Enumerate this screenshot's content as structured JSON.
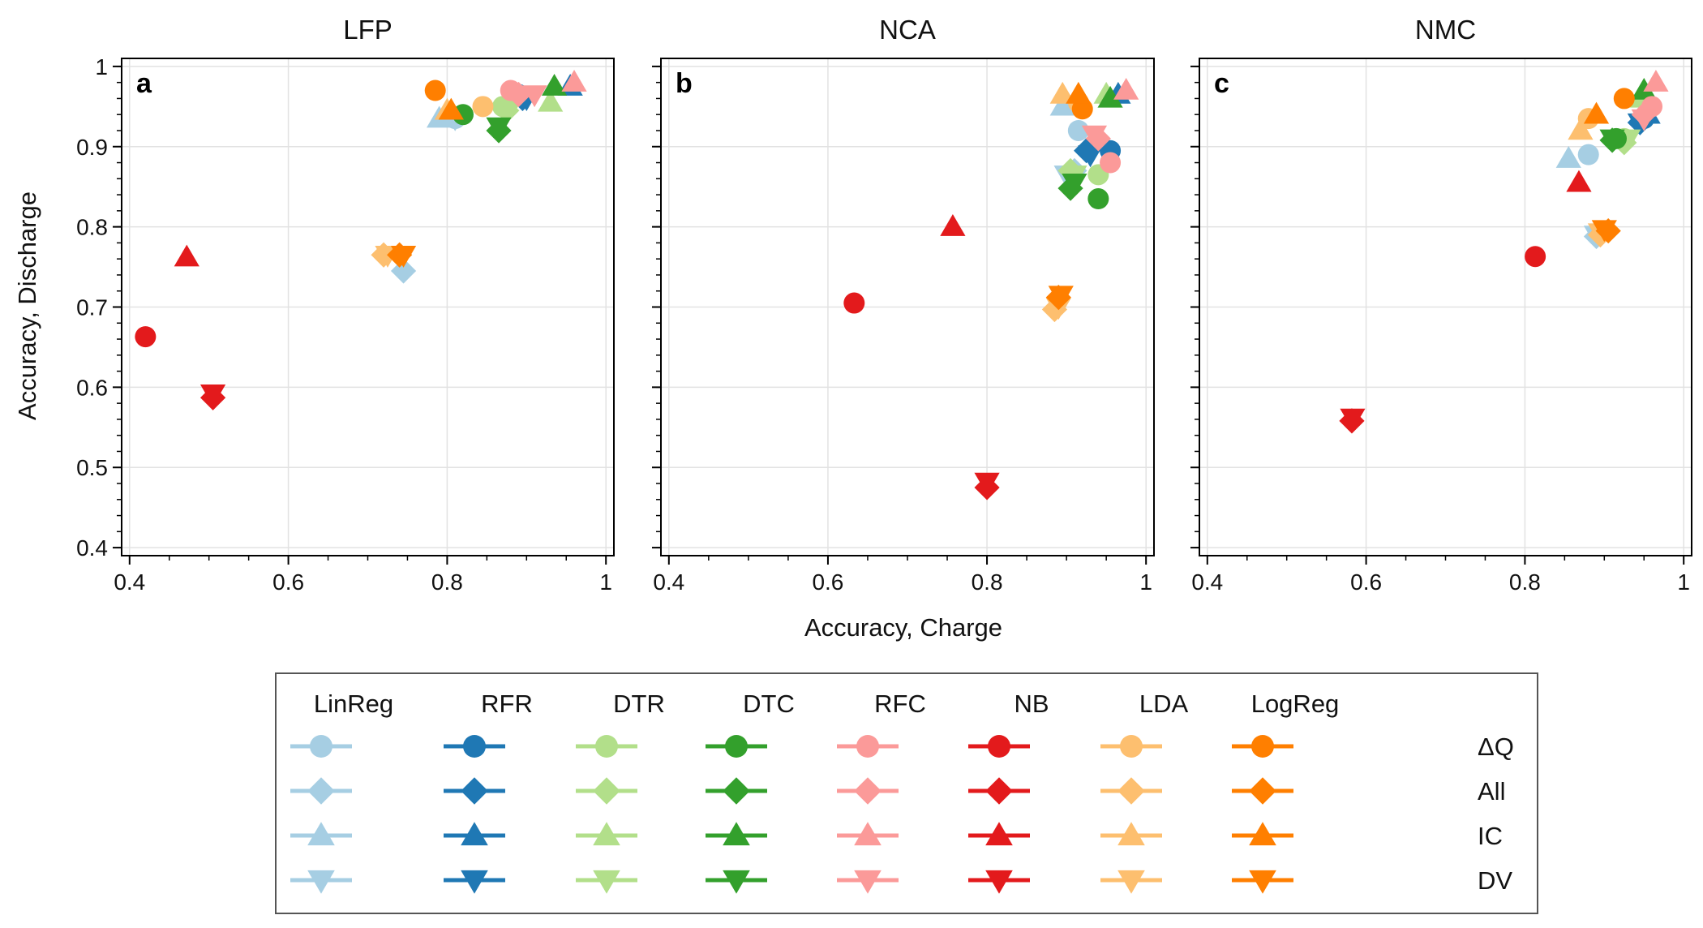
{
  "chart_data": {
    "type": "scatter",
    "xlabel": "Accuracy, Charge",
    "ylabel": "Accuracy, Discharge",
    "xlim": [
      0.39,
      1.01
    ],
    "ylim": [
      0.39,
      1.01
    ],
    "xticks": [
      "0.4",
      "0.6",
      "0.8",
      "1"
    ],
    "yticks": [
      "0.4",
      "0.5",
      "0.6",
      "0.7",
      "0.8",
      "0.9",
      "1"
    ],
    "grid": true,
    "legend_position": "bottom",
    "models": [
      {
        "name": "LinReg",
        "color": "#a6cee3"
      },
      {
        "name": "RFR",
        "color": "#1f78b4"
      },
      {
        "name": "DTR",
        "color": "#b2df8a"
      },
      {
        "name": "DTC",
        "color": "#33a02c"
      },
      {
        "name": "RFC",
        "color": "#fb9a99"
      },
      {
        "name": "NB",
        "color": "#e31a1c"
      },
      {
        "name": "LDA",
        "color": "#fdbf6f"
      },
      {
        "name": "LogReg",
        "color": "#ff7f00"
      }
    ],
    "features": [
      {
        "name": "ΔQ",
        "marker": "circle"
      },
      {
        "name": "All",
        "marker": "diamond"
      },
      {
        "name": "IC",
        "marker": "triangle-up"
      },
      {
        "name": "DV",
        "marker": "triangle-down"
      }
    ],
    "panels": [
      {
        "title": "LFP",
        "letter": "a",
        "points": {
          "LinReg": {
            "ΔQ": [
              0.81,
              0.935
            ],
            "All": [
              0.745,
              0.745
            ],
            "IC": [
              0.79,
              0.935
            ],
            "DV": [
              0.81,
              0.935
            ]
          },
          "RFR": {
            "ΔQ": [
              0.89,
              0.965
            ],
            "All": [
              0.895,
              0.96
            ],
            "IC": [
              0.955,
              0.975
            ],
            "DV": [
              0.9,
              0.96
            ]
          },
          "DTR": {
            "ΔQ": [
              0.87,
              0.95
            ],
            "All": [
              0.875,
              0.945
            ],
            "IC": [
              0.93,
              0.955
            ],
            "DV": [
              0.88,
              0.95
            ]
          },
          "DTC": {
            "ΔQ": [
              0.82,
              0.94
            ],
            "All": [
              0.865,
              0.92
            ],
            "IC": [
              0.935,
              0.975
            ],
            "DV": [
              0.865,
              0.925
            ]
          },
          "RFC": {
            "ΔQ": [
              0.88,
              0.97
            ],
            "All": [
              0.89,
              0.965
            ],
            "IC": [
              0.96,
              0.98
            ],
            "DV": [
              0.91,
              0.965
            ]
          },
          "NB": {
            "ΔQ": [
              0.42,
              0.663
            ],
            "All": [
              0.505,
              0.587
            ],
            "IC": [
              0.472,
              0.762
            ],
            "DV": [
              0.505,
              0.592
            ]
          },
          "LDA": {
            "ΔQ": [
              0.845,
              0.95
            ],
            "All": [
              0.72,
              0.765
            ],
            "IC": [
              0.8,
              0.945
            ],
            "DV": [
              0.725,
              0.765
            ]
          },
          "LogReg": {
            "ΔQ": [
              0.785,
              0.97
            ],
            "All": [
              0.74,
              0.765
            ],
            "IC": [
              0.805,
              0.945
            ],
            "DV": [
              0.745,
              0.765
            ]
          }
        }
      },
      {
        "title": "NCA",
        "letter": "b",
        "points": {
          "LinReg": {
            "ΔQ": [
              0.915,
              0.92
            ],
            "All": [
              0.91,
              0.87
            ],
            "IC": [
              0.895,
              0.95
            ],
            "DV": [
              0.9,
              0.865
            ]
          },
          "RFR": {
            "ΔQ": [
              0.955,
              0.895
            ],
            "All": [
              0.925,
              0.895
            ],
            "IC": [
              0.965,
              0.965
            ],
            "DV": [
              0.93,
              0.89
            ]
          },
          "DTR": {
            "ΔQ": [
              0.94,
              0.865
            ],
            "All": [
              0.905,
              0.87
            ],
            "IC": [
              0.95,
              0.965
            ],
            "DV": [
              0.91,
              0.865
            ]
          },
          "DTC": {
            "ΔQ": [
              0.94,
              0.835
            ],
            "All": [
              0.905,
              0.848
            ],
            "IC": [
              0.955,
              0.96
            ],
            "DV": [
              0.91,
              0.855
            ]
          },
          "RFC": {
            "ΔQ": [
              0.955,
              0.88
            ],
            "All": [
              0.94,
              0.91
            ],
            "IC": [
              0.975,
              0.97
            ],
            "DV": [
              0.935,
              0.915
            ]
          },
          "NB": {
            "ΔQ": [
              0.633,
              0.705
            ],
            "All": [
              0.8,
              0.475
            ],
            "IC": [
              0.757,
              0.8
            ],
            "DV": [
              0.8,
              0.482
            ]
          },
          "LDA": {
            "ΔQ": [
              0.915,
              0.955
            ],
            "All": [
              0.885,
              0.697
            ],
            "IC": [
              0.895,
              0.965
            ],
            "DV": [
              0.89,
              0.7
            ]
          },
          "LogReg": {
            "ΔQ": [
              0.92,
              0.947
            ],
            "All": [
              0.89,
              0.712
            ],
            "IC": [
              0.915,
              0.965
            ],
            "DV": [
              0.893,
              0.715
            ]
          }
        }
      },
      {
        "title": "NMC",
        "letter": "c",
        "points": {
          "LinReg": {
            "ΔQ": [
              0.88,
              0.89
            ],
            "All": [
              0.89,
              0.788
            ],
            "IC": [
              0.855,
              0.885
            ],
            "DV": [
              0.89,
              0.79
            ]
          },
          "RFR": {
            "ΔQ": [
              0.95,
              0.935
            ],
            "All": [
              0.945,
              0.93
            ],
            "IC": [
              0.955,
              0.94
            ],
            "DV": [
              0.945,
              0.93
            ]
          },
          "DTR": {
            "ΔQ": [
              0.925,
              0.91
            ],
            "All": [
              0.925,
              0.905
            ],
            "IC": [
              0.945,
              0.96
            ],
            "DV": [
              0.93,
              0.91
            ]
          },
          "DTC": {
            "ΔQ": [
              0.915,
              0.91
            ],
            "All": [
              0.91,
              0.908
            ],
            "IC": [
              0.95,
              0.97
            ],
            "DV": [
              0.91,
              0.91
            ]
          },
          "RFC": {
            "ΔQ": [
              0.96,
              0.95
            ],
            "All": [
              0.95,
              0.94
            ],
            "IC": [
              0.965,
              0.98
            ],
            "DV": [
              0.95,
              0.935
            ]
          },
          "NB": {
            "ΔQ": [
              0.813,
              0.763
            ],
            "All": [
              0.582,
              0.558
            ],
            "IC": [
              0.868,
              0.855
            ],
            "DV": [
              0.583,
              0.562
            ]
          },
          "LDA": {
            "ΔQ": [
              0.88,
              0.935
            ],
            "All": [
              0.895,
              0.79
            ],
            "IC": [
              0.87,
              0.92
            ],
            "DV": [
              0.895,
              0.793
            ]
          },
          "LogReg": {
            "ΔQ": [
              0.925,
              0.96
            ],
            "All": [
              0.905,
              0.795
            ],
            "IC": [
              0.89,
              0.94
            ],
            "DV": [
              0.9,
              0.797
            ]
          }
        }
      }
    ]
  }
}
